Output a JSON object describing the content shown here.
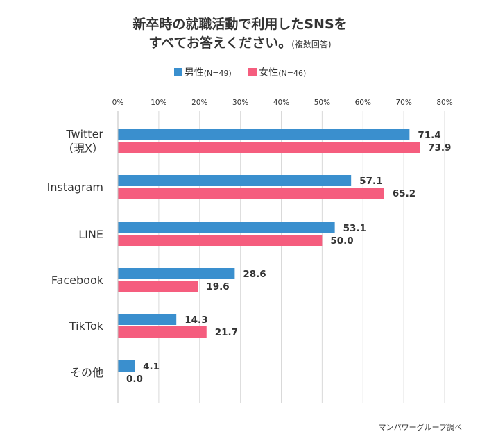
{
  "title": {
    "line1": "新卒時の就職活動で利用したSNSを",
    "line2": "すべてお答えください。",
    "note": "(複数回答)"
  },
  "legend": [
    {
      "name": "男性",
      "n": "(N=49)",
      "color": "#3a8fce"
    },
    {
      "name": "女性",
      "n": "(N=46)",
      "color": "#f55d7e"
    }
  ],
  "source": "マンパワーグループ調べ",
  "chart_data": {
    "type": "bar",
    "orientation": "horizontal",
    "categories": [
      [
        "Twitter",
        "（現X）"
      ],
      [
        "Instagram"
      ],
      [
        "LINE"
      ],
      [
        "Facebook"
      ],
      [
        "TikTok"
      ],
      [
        "その他"
      ]
    ],
    "series": [
      {
        "name": "男性",
        "color": "#3a8fce",
        "values": [
          71.4,
          57.1,
          53.1,
          28.6,
          14.3,
          4.1
        ]
      },
      {
        "name": "女性",
        "color": "#f55d7e",
        "values": [
          73.9,
          65.2,
          50.0,
          19.6,
          21.7,
          0.0
        ]
      }
    ],
    "value_labels": [
      [
        "71.4",
        "57.1",
        "53.1",
        "28.6",
        "14.3",
        "4.1"
      ],
      [
        "73.9",
        "65.2",
        "50.0",
        "19.6",
        "21.7",
        "0.0"
      ]
    ],
    "xlim": [
      0,
      80
    ],
    "ticks": [
      0,
      10,
      20,
      30,
      40,
      50,
      60,
      70,
      80
    ],
    "tick_labels": [
      "0%",
      "10%",
      "20%",
      "30%",
      "40%",
      "50%",
      "60%",
      "70%",
      "80%"
    ],
    "grid": true,
    "legend_position": "top-center"
  }
}
